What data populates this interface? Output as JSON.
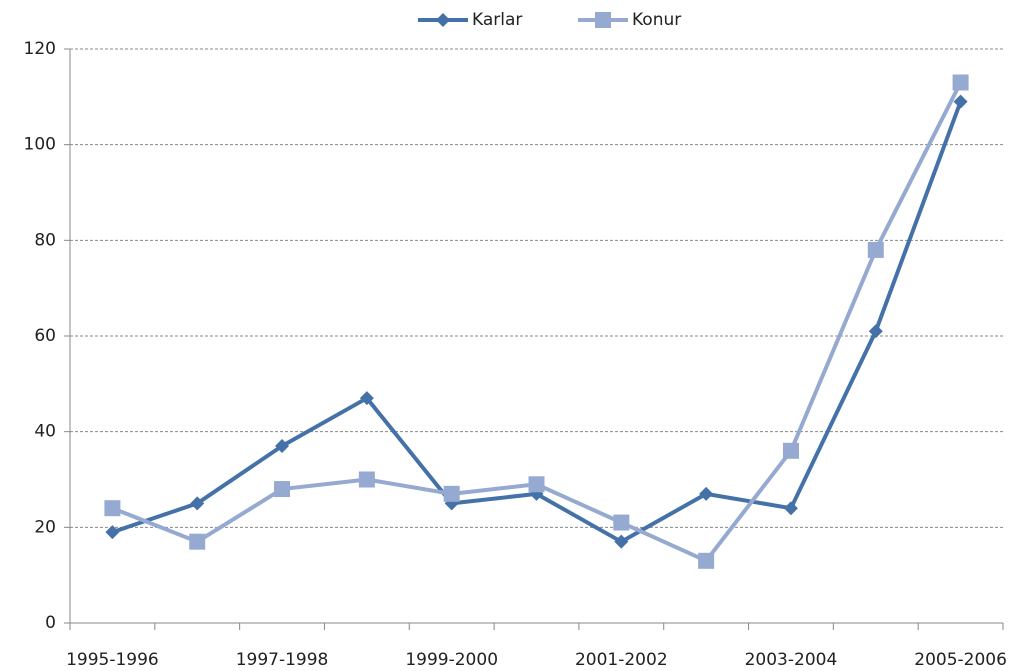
{
  "chart_data": {
    "type": "line",
    "categories": [
      "1995-1996",
      null,
      "1997-1998",
      null,
      "1999-2000",
      null,
      "2001-2002",
      null,
      "2003-2004",
      null,
      "2005-2006"
    ],
    "series": [
      {
        "name": "Karlar",
        "color": "#4472a8",
        "marker": "diamond",
        "values": [
          19,
          25,
          37,
          47,
          25,
          27,
          17,
          27,
          24,
          61,
          109
        ]
      },
      {
        "name": "Konur",
        "color": "#95a9d1",
        "marker": "square",
        "values": [
          24,
          17,
          28,
          30,
          27,
          29,
          21,
          13,
          36,
          78,
          113
        ]
      }
    ],
    "ylim": [
      0,
      120
    ],
    "yticks": [
      0,
      20,
      40,
      60,
      80,
      100,
      120
    ],
    "grid": true,
    "legend": "top"
  }
}
